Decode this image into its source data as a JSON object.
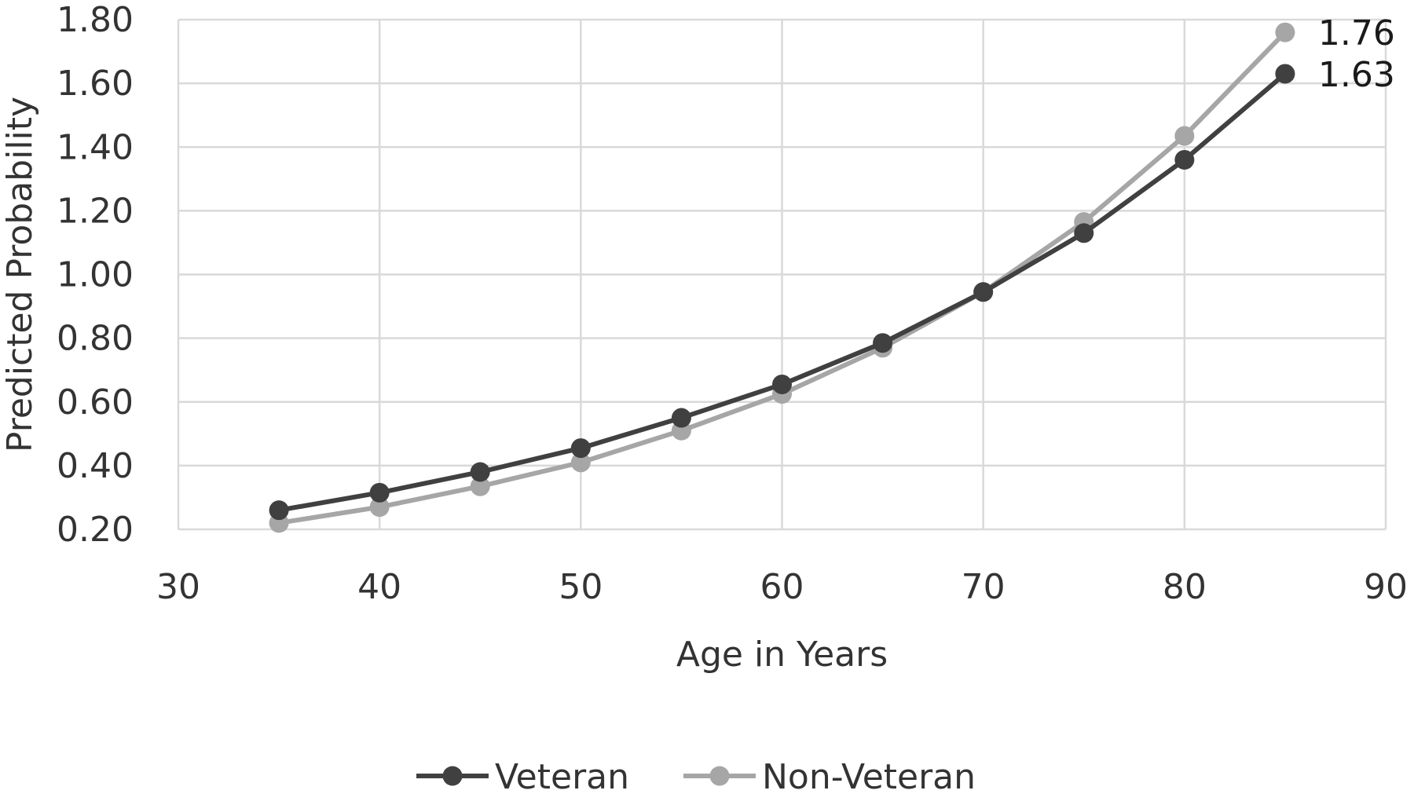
{
  "chart_data": {
    "type": "line",
    "title": "",
    "xlabel": "Age in Years",
    "ylabel": "Predicted Probability",
    "xlim": [
      30,
      90
    ],
    "ylim": [
      0.2,
      1.8
    ],
    "x_ticks": [
      "30",
      "40",
      "50",
      "60",
      "70",
      "80",
      "90"
    ],
    "y_ticks": [
      "0.20",
      "0.40",
      "0.60",
      "0.80",
      "1.00",
      "1.20",
      "1.40",
      "1.60",
      "1.80"
    ],
    "grid": true,
    "legend_position": "bottom",
    "x": [
      35,
      40,
      45,
      50,
      55,
      60,
      65,
      70,
      75,
      80,
      85
    ],
    "series": [
      {
        "name": "Veteran",
        "color": "#404040",
        "values": [
          0.26,
          0.315,
          0.38,
          0.455,
          0.55,
          0.655,
          0.785,
          0.945,
          1.13,
          1.36,
          1.63
        ],
        "end_label": "1.63"
      },
      {
        "name": "Non-Veteran",
        "color": "#a6a6a6",
        "values": [
          0.22,
          0.27,
          0.335,
          0.41,
          0.51,
          0.625,
          0.77,
          0.945,
          1.165,
          1.435,
          1.76
        ],
        "end_label": "1.76"
      }
    ]
  }
}
